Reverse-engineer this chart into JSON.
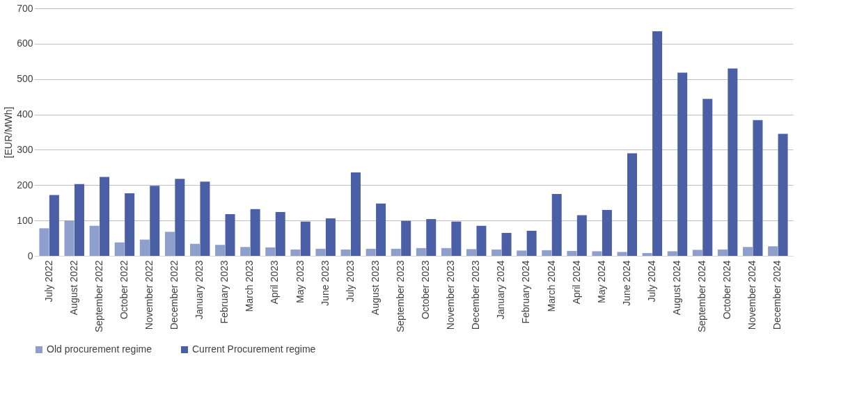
{
  "chart_data": {
    "type": "bar",
    "ylabel": "[EUR/MWh]",
    "categories": [
      "July 2022",
      "August 2022",
      "September 2022",
      "October 2022",
      "November 2022",
      "December 2022",
      "January 2023",
      "February 2023",
      "March 2023",
      "April 2023",
      "May 2023",
      "June 2023",
      "July 2023",
      "August 2023",
      "September 2023",
      "October 2023",
      "November 2023",
      "December 2023",
      "January 2024",
      "February 2024",
      "March 2024",
      "April 2024",
      "May 2024",
      "June 2024",
      "July 2024",
      "August 2024",
      "September 2024",
      "October 2024",
      "November 2024",
      "December 2024"
    ],
    "series": [
      {
        "name": "Old procurement regime",
        "color": "#8e9fcc",
        "values": [
          78,
          100,
          85,
          38,
          46,
          68,
          34,
          31,
          25,
          24,
          18,
          20,
          18,
          20,
          20,
          22,
          22,
          19,
          18,
          15,
          16,
          14,
          13,
          11,
          8,
          13,
          17,
          18,
          25,
          27
        ]
      },
      {
        "name": "Current Procurement regime",
        "color": "#4a5fa5",
        "values": [
          172,
          203,
          223,
          177,
          198,
          218,
          210,
          118,
          132,
          124,
          97,
          106,
          236,
          148,
          99,
          104,
          97,
          85,
          65,
          71,
          175,
          115,
          130,
          290,
          635,
          518,
          444,
          530,
          384,
          345
        ]
      }
    ],
    "ylim": [
      0,
      700
    ],
    "yticks": [
      0,
      100,
      200,
      300,
      400,
      500,
      600,
      700
    ],
    "grid": "y",
    "legend": "bottom"
  }
}
